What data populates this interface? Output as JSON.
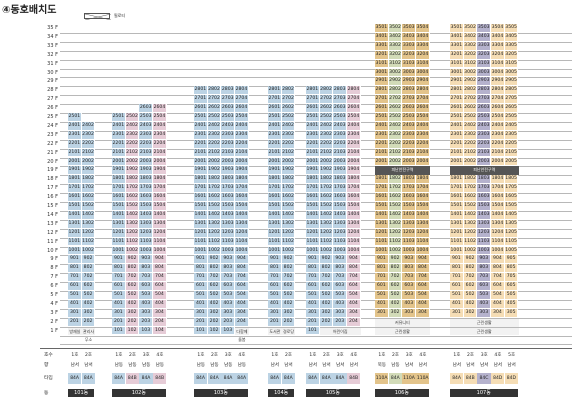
{
  "title": "④동호배치도",
  "legend": {
    "label": "필로티"
  },
  "floors_total": 35,
  "colors": {
    "A": "#bcd3e4",
    "B": "#e6ccd7",
    "C": "#d2dbb8",
    "D": "#e3c48b",
    "E": "#b5b2cd",
    "F": "#f5ddb5",
    "P": "#f2f2f2"
  },
  "footer_heads": {
    "unit": "호수",
    "dir": "향",
    "type": "타입",
    "dong": "동"
  },
  "blocks": [
    {
      "dong": "101동",
      "cols": [
        {
          "line": "1호",
          "dir": "남서",
          "type": "84A",
          "ctype": "A",
          "top": 25
        },
        {
          "line": "2호",
          "dir": "남서",
          "type": "84A",
          "ctype": "A",
          "top": 24
        }
      ],
      "first_floor": {
        "mode": "pilotis",
        "labels": [
          "방재실",
          "관리사무소"
        ]
      },
      "bottom_note": "",
      "special": []
    },
    {
      "dong": "102동",
      "cols": [
        {
          "line": "1호",
          "dir": "남동",
          "type": "84A",
          "ctype": "A",
          "top": 25
        },
        {
          "line": "2호",
          "dir": "남동",
          "type": "84B",
          "ctype": "B",
          "top": 25
        },
        {
          "line": "3호",
          "dir": "남동",
          "type": "84A",
          "ctype": "A",
          "top": 26
        },
        {
          "line": "4호",
          "dir": "남동",
          "type": "84B",
          "ctype": "B",
          "top": 26
        }
      ],
      "first_floor": {
        "mode": "units"
      },
      "bottom_note": "",
      "special": []
    },
    {
      "dong": "103동",
      "cols": [
        {
          "line": "1호",
          "dir": "남동",
          "type": "84A",
          "ctype": "A",
          "top": 28
        },
        {
          "line": "2호",
          "dir": "남동",
          "type": "84A",
          "ctype": "A",
          "top": 28
        },
        {
          "line": "3호",
          "dir": "남동",
          "type": "84A",
          "ctype": "A",
          "top": 28
        },
        {
          "line": "4호",
          "dir": "남동",
          "type": "84A",
          "ctype": "A",
          "top": 28
        }
      ],
      "first_floor": {
        "mode": "partial",
        "units": 3,
        "label": "다함께돌봄"
      },
      "bottom_note": "",
      "special": []
    },
    {
      "dong": "104동",
      "cols": [
        {
          "line": "1호",
          "dir": "남서",
          "type": "84A",
          "ctype": "A",
          "top": 28
        },
        {
          "line": "2호",
          "dir": "남서",
          "type": "84A",
          "ctype": "A",
          "top": 28
        }
      ],
      "first_floor": {
        "mode": "pilotis",
        "labels": [
          "도서관",
          "경로당"
        ]
      },
      "bottom_note": "",
      "special": []
    },
    {
      "dong": "105동",
      "cols": [
        {
          "line": "1호",
          "dir": "남서",
          "type": "84A",
          "ctype": "A",
          "top": 28
        },
        {
          "line": "2호",
          "dir": "남서",
          "type": "84A",
          "ctype": "A",
          "top": 28
        },
        {
          "line": "3호",
          "dir": "남서",
          "type": "84A",
          "ctype": "A",
          "top": 28
        },
        {
          "line": "4호",
          "dir": "남서",
          "type": "84B",
          "ctype": "B",
          "top": 28
        }
      ],
      "first_floor": {
        "mode": "partial",
        "units": 1,
        "label": "어린이집"
      },
      "bottom_note": "",
      "special": []
    },
    {
      "dong": "106동",
      "cols": [
        {
          "line": "1호",
          "dir": "북동",
          "type": "110A",
          "ctype": "D",
          "top": 35
        },
        {
          "line": "2호",
          "dir": "남동",
          "type": "84A",
          "ctype": "C",
          "top": 35
        },
        {
          "line": "3호",
          "dir": "남서",
          "type": "110A",
          "ctype": "D",
          "top": 35
        },
        {
          "line": "4호",
          "dir": "남서",
          "type": "110A",
          "ctype": "D",
          "top": 35
        }
      ],
      "first_floor": {
        "mode": "facility",
        "label": "근린생활"
      },
      "second_floor_label": "커뮤니티",
      "refuge_label": "피난안전구역",
      "special": []
    },
    {
      "dong": "107동",
      "cols": [
        {
          "line": "1호",
          "dir": "남서",
          "type": "84A",
          "ctype": "F",
          "top": 35
        },
        {
          "line": "2호",
          "dir": "남서",
          "type": "84B",
          "ctype": "F",
          "top": 35
        },
        {
          "line": "3호",
          "dir": "남서",
          "type": "84C",
          "ctype": "E",
          "top": 35
        },
        {
          "line": "4호",
          "dir": "남서",
          "type": "84D",
          "ctype": "F",
          "top": 35
        },
        {
          "line": "5호",
          "dir": "남서",
          "type": "84D",
          "ctype": "F",
          "top": 35
        }
      ],
      "first_floor": {
        "mode": "facility",
        "label": "근린생활"
      },
      "second_floor_label": "근린생활",
      "refuge_label": "피난안전구역",
      "special": []
    }
  ]
}
